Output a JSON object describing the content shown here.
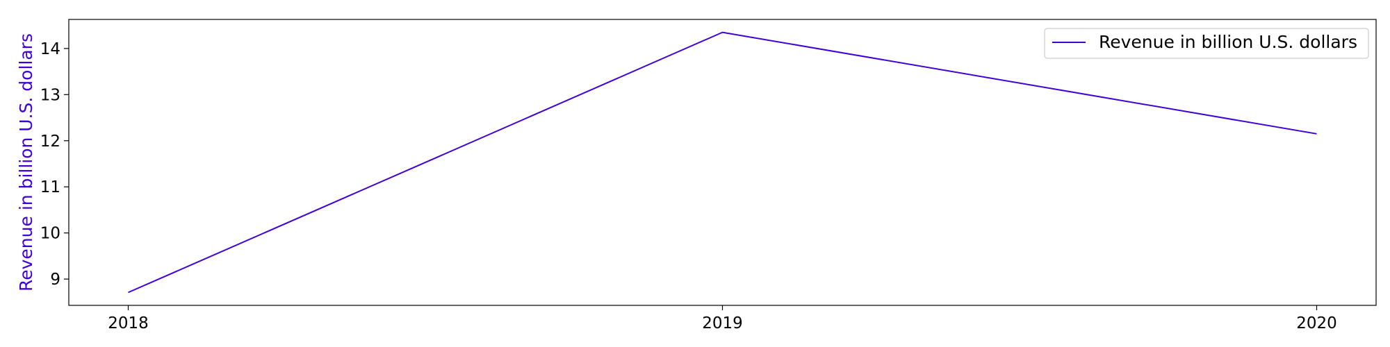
{
  "chart_data": {
    "type": "line",
    "title": "",
    "xlabel": "",
    "ylabel": "Revenue in billion U.S. dollars",
    "categories": [
      "2018",
      "2019",
      "2020"
    ],
    "series": [
      {
        "name": "Revenue in billion U.S. dollars",
        "values": [
          8.71,
          14.35,
          12.15
        ],
        "color": "#4000d8"
      }
    ],
    "xlim": [
      -0.1,
      2.1
    ],
    "ylim": [
      8.43,
      14.63
    ],
    "yticks": [
      9,
      10,
      11,
      12,
      13,
      14
    ],
    "grid": false,
    "legend": "top-right"
  }
}
